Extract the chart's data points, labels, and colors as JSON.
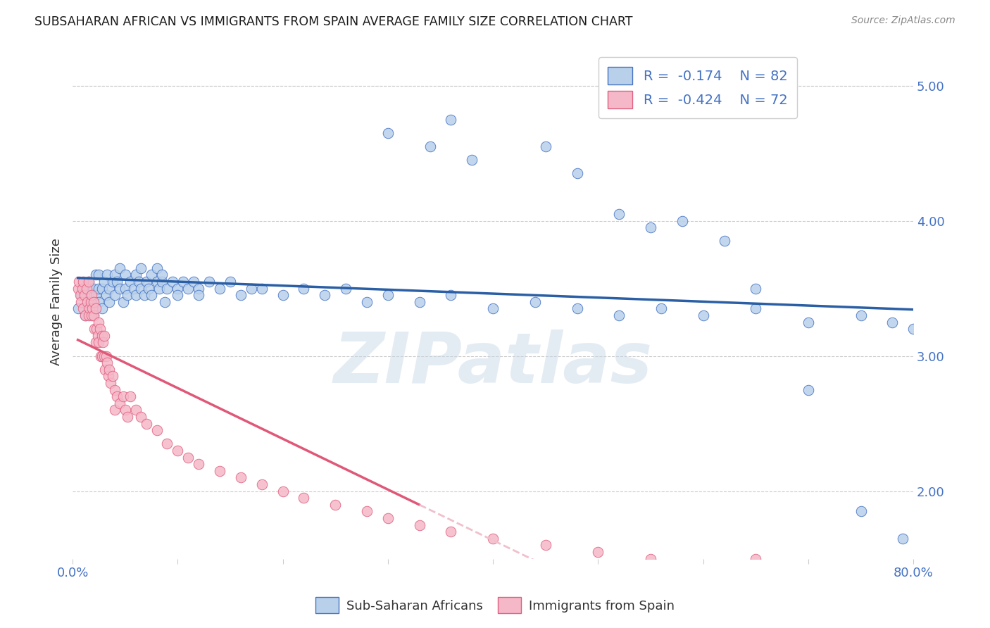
{
  "title": "SUBSAHARAN AFRICAN VS IMMIGRANTS FROM SPAIN AVERAGE FAMILY SIZE CORRELATION CHART",
  "source": "Source: ZipAtlas.com",
  "ylabel": "Average Family Size",
  "xlim": [
    0.0,
    0.8
  ],
  "ylim": [
    1.5,
    5.3
  ],
  "yticks_right": [
    2.0,
    3.0,
    4.0,
    5.0
  ],
  "watermark": "ZIPatlas",
  "blue_R": "-0.174",
  "blue_N": "82",
  "pink_R": "-0.424",
  "pink_N": "72",
  "blue_color": "#b8d0ea",
  "blue_edge_color": "#4472c4",
  "blue_line_color": "#2b5fa5",
  "pink_color": "#f5b8c8",
  "pink_edge_color": "#e06080",
  "pink_line_color": "#e05878",
  "pink_dash_color": "#f0c0cc",
  "blue_scatter_x": [
    0.005,
    0.008,
    0.01,
    0.012,
    0.015,
    0.018,
    0.02,
    0.02,
    0.022,
    0.022,
    0.025,
    0.025,
    0.025,
    0.028,
    0.028,
    0.03,
    0.032,
    0.033,
    0.035,
    0.035,
    0.038,
    0.04,
    0.04,
    0.042,
    0.045,
    0.045,
    0.048,
    0.05,
    0.05,
    0.052,
    0.055,
    0.058,
    0.06,
    0.06,
    0.063,
    0.065,
    0.065,
    0.068,
    0.07,
    0.072,
    0.075,
    0.075,
    0.08,
    0.08,
    0.082,
    0.085,
    0.085,
    0.088,
    0.09,
    0.095,
    0.1,
    0.1,
    0.105,
    0.11,
    0.115,
    0.12,
    0.12,
    0.13,
    0.14,
    0.15,
    0.16,
    0.17,
    0.18,
    0.2,
    0.22,
    0.24,
    0.26,
    0.28,
    0.3,
    0.33,
    0.36,
    0.4,
    0.44,
    0.48,
    0.52,
    0.56,
    0.6,
    0.65,
    0.7,
    0.75,
    0.78,
    0.8
  ],
  "blue_scatter_y": [
    3.35,
    3.45,
    3.5,
    3.3,
    3.55,
    3.4,
    3.5,
    3.3,
    3.45,
    3.6,
    3.4,
    3.5,
    3.6,
    3.5,
    3.35,
    3.55,
    3.45,
    3.6,
    3.5,
    3.4,
    3.55,
    3.45,
    3.6,
    3.55,
    3.5,
    3.65,
    3.4,
    3.5,
    3.6,
    3.45,
    3.55,
    3.5,
    3.45,
    3.6,
    3.55,
    3.5,
    3.65,
    3.45,
    3.55,
    3.5,
    3.6,
    3.45,
    3.55,
    3.65,
    3.5,
    3.55,
    3.6,
    3.4,
    3.5,
    3.55,
    3.5,
    3.45,
    3.55,
    3.5,
    3.55,
    3.5,
    3.45,
    3.55,
    3.5,
    3.55,
    3.45,
    3.5,
    3.5,
    3.45,
    3.5,
    3.45,
    3.5,
    3.4,
    3.45,
    3.4,
    3.45,
    3.35,
    3.4,
    3.35,
    3.3,
    3.35,
    3.3,
    3.35,
    3.25,
    3.3,
    3.25,
    3.2
  ],
  "blue_outlier_x": [
    0.3,
    0.34,
    0.36,
    0.38,
    0.45,
    0.48,
    0.52,
    0.55,
    0.58,
    0.62,
    0.65,
    0.7,
    0.75,
    0.79
  ],
  "blue_outlier_y": [
    4.65,
    4.55,
    4.75,
    4.45,
    4.55,
    4.35,
    4.05,
    3.95,
    4.0,
    3.85,
    3.5,
    2.75,
    1.85,
    1.65
  ],
  "pink_scatter_x": [
    0.005,
    0.006,
    0.007,
    0.008,
    0.009,
    0.01,
    0.01,
    0.011,
    0.012,
    0.013,
    0.014,
    0.015,
    0.015,
    0.016,
    0.017,
    0.018,
    0.018,
    0.019,
    0.02,
    0.02,
    0.021,
    0.022,
    0.022,
    0.023,
    0.024,
    0.025,
    0.025,
    0.026,
    0.027,
    0.028,
    0.028,
    0.029,
    0.03,
    0.03,
    0.031,
    0.032,
    0.033,
    0.034,
    0.035,
    0.036,
    0.038,
    0.04,
    0.04,
    0.042,
    0.045,
    0.048,
    0.05,
    0.052,
    0.055,
    0.06,
    0.065,
    0.07,
    0.08,
    0.09,
    0.1,
    0.11,
    0.12,
    0.14,
    0.16,
    0.18,
    0.2,
    0.22,
    0.25,
    0.28,
    0.3,
    0.33,
    0.36,
    0.4,
    0.45,
    0.5,
    0.55,
    0.65
  ],
  "pink_scatter_y": [
    3.5,
    3.55,
    3.45,
    3.4,
    3.5,
    3.55,
    3.35,
    3.45,
    3.3,
    3.5,
    3.4,
    3.55,
    3.3,
    3.35,
    3.4,
    3.3,
    3.45,
    3.35,
    3.4,
    3.3,
    3.2,
    3.35,
    3.1,
    3.2,
    3.15,
    3.25,
    3.1,
    3.2,
    3.0,
    3.15,
    3.0,
    3.1,
    3.15,
    3.0,
    2.9,
    3.0,
    2.95,
    2.85,
    2.9,
    2.8,
    2.85,
    2.75,
    2.6,
    2.7,
    2.65,
    2.7,
    2.6,
    2.55,
    2.7,
    2.6,
    2.55,
    2.5,
    2.45,
    2.35,
    2.3,
    2.25,
    2.2,
    2.15,
    2.1,
    2.05,
    2.0,
    1.95,
    1.9,
    1.85,
    1.8,
    1.75,
    1.7,
    1.65,
    1.6,
    1.55,
    1.5,
    1.5
  ],
  "pink_line_end_x": 0.33
}
